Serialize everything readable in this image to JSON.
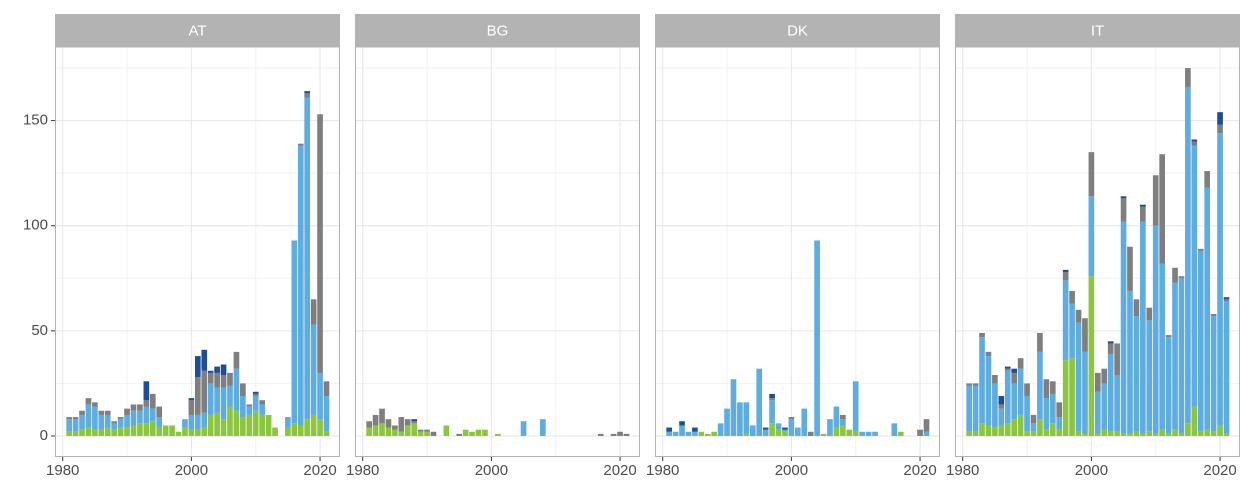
{
  "chart_data": [
    {
      "type": "bar",
      "title": "AT",
      "x": [
        1981,
        1982,
        1983,
        1984,
        1985,
        1986,
        1987,
        1988,
        1989,
        1990,
        1991,
        1992,
        1993,
        1994,
        1995,
        1996,
        1997,
        1998,
        1999,
        2000,
        2001,
        2002,
        2003,
        2004,
        2005,
        2006,
        2007,
        2008,
        2009,
        2010,
        2011,
        2012,
        2013,
        2014,
        2015,
        2016,
        2017,
        2018,
        2019,
        2020,
        2021
      ],
      "series": [
        {
          "color": "#8cc63f",
          "values": [
            2,
            2,
            3,
            4,
            3,
            3,
            4,
            3,
            4,
            4,
            5,
            6,
            6,
            7,
            4,
            5,
            5,
            2,
            4,
            3,
            3,
            4,
            10,
            11,
            8,
            14,
            12,
            9,
            10,
            12,
            10,
            10,
            4,
            0,
            4,
            6,
            5,
            8,
            10,
            8,
            2
          ]
        },
        {
          "color": "#5dade2",
          "values": [
            6,
            6,
            7,
            11,
            11,
            7,
            6,
            3,
            4,
            6,
            7,
            6,
            8,
            6,
            5,
            0,
            0,
            0,
            4,
            7,
            7,
            7,
            15,
            12,
            15,
            10,
            20,
            10,
            4,
            7,
            5,
            0,
            0,
            0,
            5,
            87,
            133,
            153,
            43,
            22,
            17
          ]
        },
        {
          "color": "#7f7f7f",
          "values": [
            1,
            1,
            2,
            3,
            2,
            2,
            2,
            1,
            1,
            3,
            3,
            3,
            3,
            7,
            5,
            0,
            0,
            0,
            0,
            7,
            18,
            20,
            5,
            7,
            6,
            6,
            8,
            6,
            1,
            1,
            2,
            0,
            0,
            0,
            0,
            0,
            1,
            2,
            12,
            123,
            7
          ]
        },
        {
          "color": "#1f4e99",
          "values": [
            0,
            0,
            0,
            0,
            0,
            0,
            0,
            0,
            0,
            0,
            0,
            0,
            9,
            0,
            0,
            0,
            0,
            0,
            0,
            1,
            10,
            10,
            1,
            3,
            5,
            0,
            0,
            0,
            0,
            1,
            0,
            0,
            0,
            0,
            0,
            0,
            0,
            1,
            0,
            0,
            0
          ]
        }
      ],
      "xlim": [
        1978.8,
        2023.1
      ],
      "xticks": [
        1980,
        2000,
        2020
      ],
      "ylim": [
        -10,
        185
      ],
      "yticks": [
        0,
        50,
        100,
        150
      ],
      "grid": true
    },
    {
      "type": "bar",
      "title": "BG",
      "x": [
        1981,
        1982,
        1983,
        1984,
        1985,
        1986,
        1987,
        1988,
        1989,
        1990,
        1991,
        1992,
        1993,
        1994,
        1995,
        1996,
        1997,
        1998,
        1999,
        2000,
        2001,
        2002,
        2003,
        2004,
        2005,
        2006,
        2007,
        2008,
        2009,
        2010,
        2011,
        2012,
        2013,
        2014,
        2015,
        2016,
        2017,
        2018,
        2019,
        2020,
        2021
      ],
      "series": [
        {
          "color": "#8cc63f",
          "values": [
            4,
            5,
            6,
            4,
            3,
            2,
            5,
            6,
            2,
            2,
            0,
            0,
            5,
            0,
            0,
            3,
            2,
            3,
            3,
            0,
            1,
            0,
            0,
            0,
            0,
            0,
            0,
            0,
            0,
            0,
            0,
            0,
            0,
            0,
            0,
            0,
            0,
            0,
            0,
            0,
            0
          ]
        },
        {
          "color": "#5dade2",
          "values": [
            0,
            0,
            0,
            0,
            0,
            0,
            0,
            0,
            0,
            0,
            0,
            0,
            0,
            0,
            0,
            0,
            0,
            0,
            0,
            0,
            0,
            0,
            0,
            0,
            7,
            0,
            0,
            8,
            0,
            0,
            0,
            0,
            0,
            0,
            0,
            0,
            0,
            0,
            0,
            0,
            0
          ]
        },
        {
          "color": "#7f7f7f",
          "values": [
            3,
            5,
            7,
            4,
            2,
            7,
            3,
            1,
            1,
            1,
            2,
            0,
            0,
            0,
            1,
            0,
            0,
            0,
            0,
            0,
            0,
            0,
            0,
            0,
            0,
            0,
            0,
            0,
            0,
            0,
            0,
            0,
            0,
            0,
            0,
            0,
            1,
            0,
            1,
            2,
            1
          ]
        },
        {
          "color": "#1f4e99",
          "values": [
            0,
            0,
            0,
            0,
            0,
            0,
            0,
            1,
            0,
            0,
            0,
            0,
            0,
            0,
            0,
            0,
            0,
            0,
            0,
            0,
            0,
            0,
            0,
            0,
            0,
            0,
            0,
            0,
            0,
            0,
            0,
            0,
            0,
            0,
            0,
            0,
            0,
            0,
            0,
            0,
            0
          ]
        }
      ],
      "xlim": [
        1978.8,
        2023.1
      ],
      "xticks": [
        1980,
        2000,
        2020
      ],
      "ylim": [
        -10,
        185
      ],
      "yticks": [
        0,
        50,
        100,
        150
      ],
      "grid": true
    },
    {
      "type": "bar",
      "title": "DK",
      "x": [
        1981,
        1982,
        1983,
        1984,
        1985,
        1986,
        1987,
        1988,
        1989,
        1990,
        1991,
        1992,
        1993,
        1994,
        1995,
        1996,
        1997,
        1998,
        1999,
        2000,
        2001,
        2002,
        2003,
        2004,
        2005,
        2006,
        2007,
        2008,
        2009,
        2010,
        2011,
        2012,
        2013,
        2014,
        2015,
        2016,
        2017,
        2018,
        2019,
        2020,
        2021
      ],
      "series": [
        {
          "color": "#8cc63f",
          "values": [
            0,
            0,
            0,
            0,
            0,
            2,
            1,
            2,
            0,
            0,
            0,
            0,
            1,
            0,
            0,
            0,
            6,
            3,
            2,
            0,
            0,
            0,
            0,
            0,
            1,
            0,
            4,
            5,
            3,
            2,
            0,
            0,
            0,
            0,
            0,
            0,
            2,
            0,
            0,
            0,
            0
          ]
        },
        {
          "color": "#5dade2",
          "values": [
            2,
            2,
            5,
            2,
            2,
            0,
            0,
            0,
            6,
            13,
            27,
            16,
            15,
            5,
            32,
            3,
            11,
            3,
            1,
            8,
            4,
            13,
            0,
            93,
            0,
            8,
            10,
            3,
            0,
            24,
            2,
            2,
            2,
            0,
            0,
            6,
            0,
            0,
            0,
            0,
            2
          ]
        },
        {
          "color": "#7f7f7f",
          "values": [
            0,
            0,
            0,
            0,
            0,
            0,
            0,
            0,
            0,
            0,
            0,
            0,
            0,
            0,
            0,
            0,
            1,
            0,
            0,
            1,
            0,
            0,
            2,
            0,
            0,
            0,
            0,
            2,
            0,
            0,
            0,
            0,
            0,
            0,
            0,
            0,
            0,
            0,
            0,
            3,
            6
          ]
        },
        {
          "color": "#1f4e99",
          "values": [
            2,
            0,
            2,
            0,
            2,
            0,
            0,
            0,
            0,
            0,
            0,
            0,
            0,
            0,
            0,
            1,
            2,
            0,
            1,
            0,
            0,
            0,
            0,
            0,
            0,
            0,
            0,
            0,
            0,
            0,
            0,
            0,
            0,
            0,
            0,
            0,
            0,
            0,
            0,
            0,
            0
          ]
        }
      ],
      "xlim": [
        1978.8,
        2023.1
      ],
      "xticks": [
        1980,
        2000,
        2020
      ],
      "ylim": [
        -10,
        185
      ],
      "yticks": [
        0,
        50,
        100,
        150
      ],
      "grid": true
    },
    {
      "type": "bar",
      "title": "IT",
      "x": [
        1981,
        1982,
        1983,
        1984,
        1985,
        1986,
        1987,
        1988,
        1989,
        1990,
        1991,
        1992,
        1993,
        1994,
        1995,
        1996,
        1997,
        1998,
        1999,
        2000,
        2001,
        2002,
        2003,
        2004,
        2005,
        2006,
        2007,
        2008,
        2009,
        2010,
        2011,
        2012,
        2013,
        2014,
        2015,
        2016,
        2017,
        2018,
        2019,
        2020,
        2021
      ],
      "series": [
        {
          "color": "#8cc63f",
          "values": [
            2,
            2,
            6,
            5,
            4,
            5,
            6,
            8,
            10,
            2,
            2,
            8,
            3,
            6,
            3,
            36,
            37,
            2,
            1,
            76,
            1,
            3,
            2,
            2,
            1,
            1,
            2,
            1,
            2,
            1,
            3,
            1,
            3,
            1,
            6,
            14,
            2,
            3,
            2,
            5,
            1
          ]
        },
        {
          "color": "#5dade2",
          "values": [
            22,
            22,
            41,
            33,
            21,
            8,
            25,
            17,
            22,
            17,
            4,
            32,
            15,
            14,
            6,
            38,
            26,
            52,
            39,
            38,
            20,
            22,
            37,
            27,
            101,
            68,
            55,
            101,
            53,
            99,
            79,
            46,
            70,
            74,
            160,
            124,
            86,
            115,
            55,
            139,
            63
          ]
        },
        {
          "color": "#7f7f7f",
          "values": [
            1,
            1,
            2,
            2,
            4,
            2,
            1,
            5,
            5,
            6,
            4,
            9,
            9,
            6,
            7,
            4,
            6,
            6,
            16,
            21,
            9,
            7,
            5,
            15,
            11,
            21,
            8,
            7,
            6,
            24,
            52,
            1,
            7,
            1,
            9,
            2,
            1,
            8,
            1,
            4,
            1
          ]
        },
        {
          "color": "#1f4e99",
          "values": [
            0,
            0,
            0,
            0,
            0,
            4,
            1,
            2,
            0,
            0,
            0,
            0,
            0,
            0,
            0,
            1,
            0,
            0,
            0,
            0,
            0,
            0,
            1,
            0,
            1,
            0,
            0,
            1,
            0,
            0,
            0,
            0,
            0,
            0,
            0,
            1,
            0,
            0,
            0,
            6,
            1
          ]
        }
      ],
      "xlim": [
        1978.8,
        2023.1
      ],
      "xticks": [
        1980,
        2000,
        2020
      ],
      "ylim": [
        -10,
        185
      ],
      "yticks": [
        0,
        50,
        100,
        150
      ],
      "grid": true
    }
  ]
}
